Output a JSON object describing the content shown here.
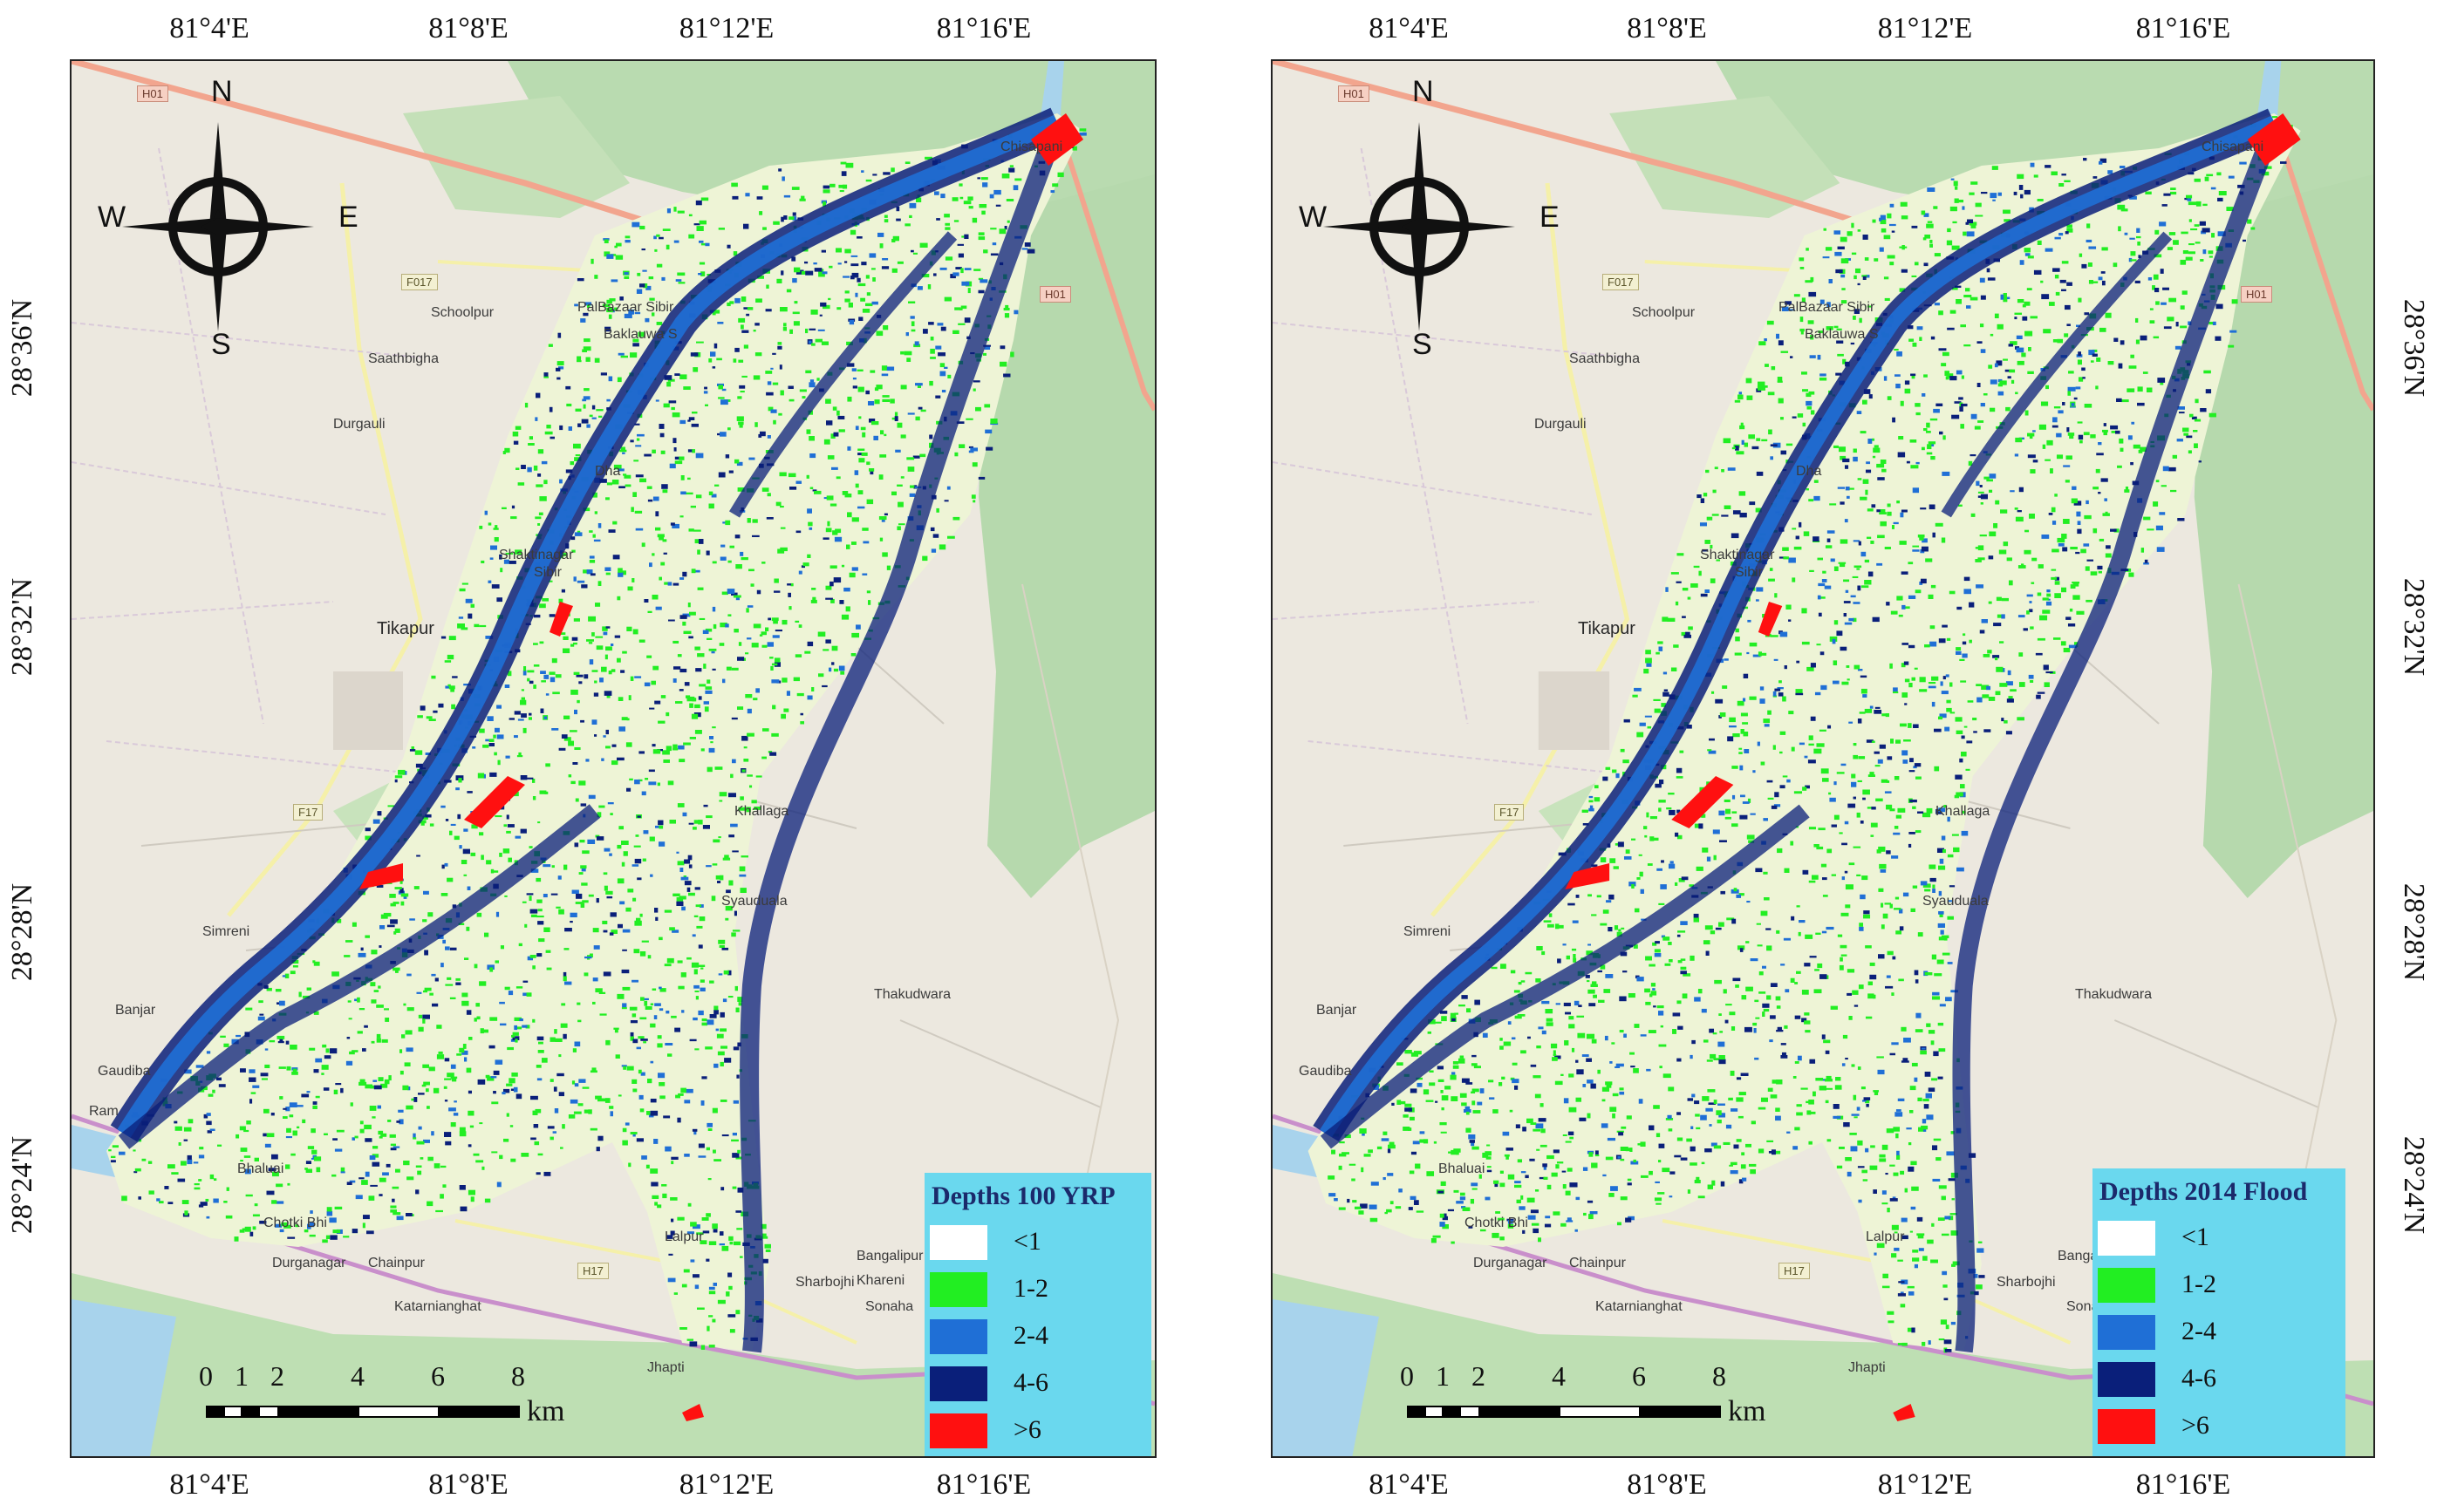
{
  "maps": [
    {
      "id": "left",
      "legend": {
        "title": "Depths 100 YRP",
        "classes": [
          {
            "label": "<1",
            "color": "#ffffff"
          },
          {
            "label": "1-2",
            "color": "#22ee22"
          },
          {
            "label": "2-4",
            "color": "#1f6fd6"
          },
          {
            "label": "4-6",
            "color": "#0a1f7a"
          },
          {
            "label": ">6",
            "color": "#ff1010"
          }
        ]
      }
    },
    {
      "id": "right",
      "legend": {
        "title": "Depths 2014 Flood",
        "classes": [
          {
            "label": "<1",
            "color": "#ffffff"
          },
          {
            "label": "1-2",
            "color": "#22ee22"
          },
          {
            "label": "2-4",
            "color": "#1f6fd6"
          },
          {
            "label": "4-6",
            "color": "#0a1f7a"
          },
          {
            "label": ">6",
            "color": "#ff1010"
          }
        ]
      }
    }
  ],
  "graticule": {
    "longitude_labels": [
      "81°4'E",
      "81°8'E",
      "81°12'E",
      "81°16'E"
    ],
    "latitude_labels": [
      "28°36'N",
      "28°32'N",
      "28°28'N",
      "28°24'N"
    ]
  },
  "compass": {
    "n": "N",
    "s": "S",
    "e": "E",
    "w": "W"
  },
  "scale_bar": {
    "ticks": [
      "0",
      "1",
      "2",
      "4",
      "6",
      "8"
    ],
    "unit": "km"
  },
  "places": {
    "chisapani": "Chisapani",
    "schoolpur": "Schoolpur",
    "palbazaar": "PalBazaar Sibir",
    "baklauwa": "Baklauwa S",
    "saathbigha": "Saathbigha",
    "durgauli": "Durgauli",
    "shaktinagar": "Shaktinagar",
    "sibir": "Sibir",
    "tikapur": "Tikapur",
    "simreni": "Simreni",
    "banjar": "Banjar",
    "gaudiba": "Gaudiba",
    "bhalua": "Bhaluai",
    "chotki": "Chotki Bhi",
    "durganagar": "Durganagar",
    "chainpur": "Chainpur",
    "katarnia": "Katarnianghat",
    "lalpur": "Lalpur",
    "jhapti": "Jhapti",
    "thakudwara": "Thakudwara",
    "bangalipur": "Bangalipur",
    "khareni": "Khareni",
    "sonaha": "Sonaha",
    "sharbojhi": "Sharbojhi",
    "khallaga": "Khallaga",
    "syau": "Syauduala",
    "dha": "Dha",
    "ram": "Ram"
  },
  "roads": {
    "h01a": "H01",
    "h01b": "H01",
    "f017": "F017",
    "f17": "F17",
    "h17": "H17"
  }
}
